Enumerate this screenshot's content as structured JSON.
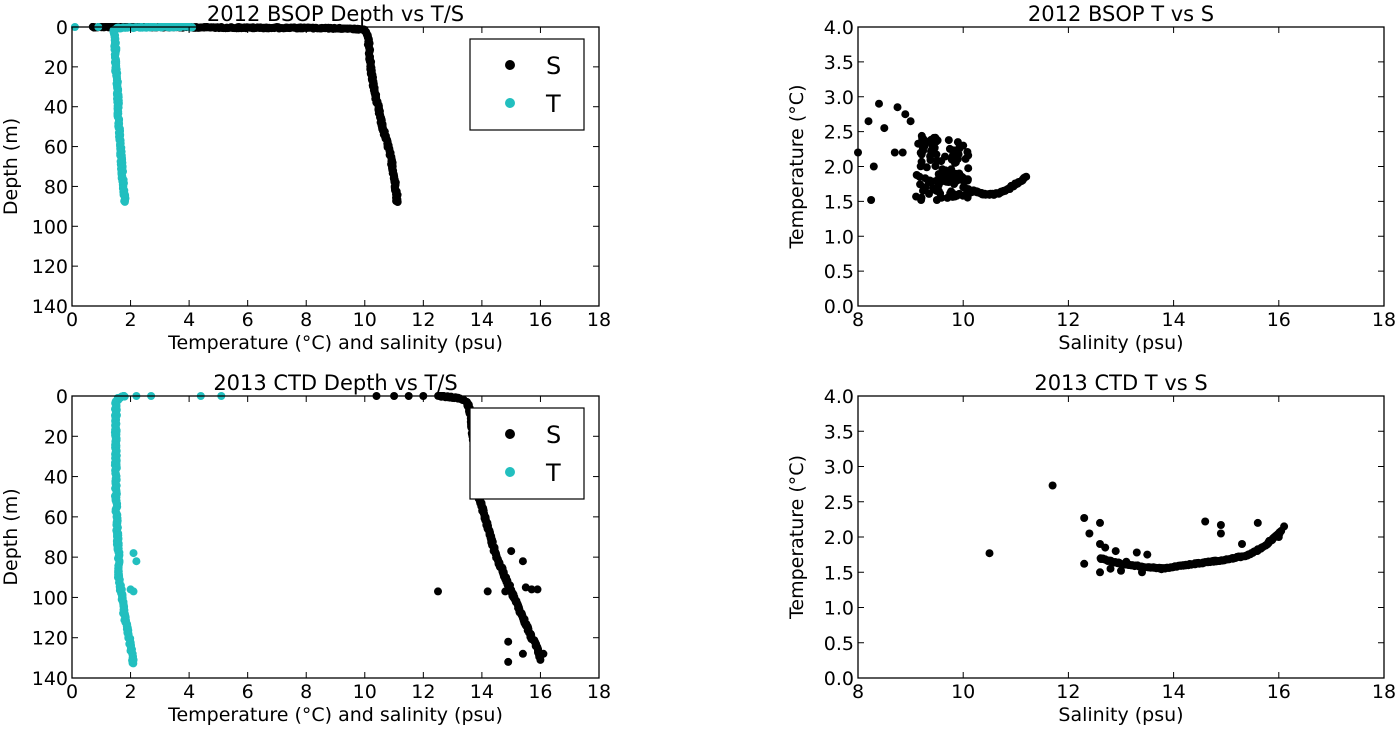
{
  "colors": {
    "salinity": "#000000",
    "temperature": "#22bfbf",
    "axes": "#000000"
  },
  "chart_data": [
    {
      "id": "depth2012",
      "type": "scatter",
      "title": "2012 BSOP Depth vs T/S",
      "xlabel": "Temperature (°C) and salinity (psu)",
      "ylabel": "Depth (m)",
      "xlim": [
        0,
        18
      ],
      "ylim": [
        140,
        0
      ],
      "y_inverted": true,
      "xticks": [
        "0",
        "2",
        "4",
        "6",
        "8",
        "10",
        "12",
        "14",
        "16",
        "18"
      ],
      "yticks": [
        "0",
        "20",
        "40",
        "60",
        "80",
        "100",
        "120",
        "140"
      ],
      "legend": {
        "position": "top-right",
        "entries": [
          "S",
          "T"
        ]
      },
      "series": [
        {
          "name": "S",
          "profile": [
            [
              0.7,
              0
            ],
            [
              3,
              0
            ],
            [
              6,
              0.4
            ],
            [
              8,
              0.5
            ],
            [
              9.5,
              0.8
            ],
            [
              10,
              1.5
            ],
            [
              10.1,
              5
            ],
            [
              10.15,
              10
            ],
            [
              10.2,
              20
            ],
            [
              10.3,
              30
            ],
            [
              10.45,
              40
            ],
            [
              10.6,
              50
            ],
            [
              10.8,
              60
            ],
            [
              10.95,
              70
            ],
            [
              11.05,
              80
            ],
            [
              11.1,
              85
            ],
            [
              11.1,
              88
            ]
          ],
          "scatter": [
            [
              1,
              0
            ],
            [
              3,
              0
            ],
            [
              5.7,
              0
            ],
            [
              7,
              0
            ],
            [
              7.4,
              0.5
            ],
            [
              9,
              0.8
            ]
          ]
        },
        {
          "name": "T",
          "profile": [
            [
              4.1,
              0
            ],
            [
              3,
              0
            ],
            [
              2,
              0.3
            ],
            [
              1.5,
              0.6
            ],
            [
              1.4,
              1.5
            ],
            [
              1.45,
              5
            ],
            [
              1.48,
              10
            ],
            [
              1.5,
              20
            ],
            [
              1.55,
              30
            ],
            [
              1.58,
              40
            ],
            [
              1.6,
              50
            ],
            [
              1.65,
              60
            ],
            [
              1.7,
              70
            ],
            [
              1.75,
              80
            ],
            [
              1.8,
              85
            ],
            [
              1.8,
              88
            ]
          ],
          "scatter": [
            [
              0.1,
              0
            ],
            [
              0.9,
              0
            ],
            [
              4,
              0
            ]
          ]
        }
      ]
    },
    {
      "id": "ts2012",
      "type": "scatter",
      "title": "2012 BSOP T vs S",
      "xlabel": "Salinity (psu)",
      "ylabel": "Temperature (°C)",
      "xlim": [
        8,
        18
      ],
      "ylim": [
        0,
        4
      ],
      "xticks": [
        "8",
        "10",
        "12",
        "14",
        "16",
        "18"
      ],
      "yticks": [
        "0.0",
        "0.5",
        "1.0",
        "1.5",
        "2.0",
        "2.5",
        "3.0",
        "3.5",
        "4.0"
      ],
      "series": [
        {
          "name": "",
          "cluster": {
            "xrange": [
              9.1,
              10.1
            ],
            "yrange": [
              1.55,
              2.6
            ],
            "count": 120
          },
          "profile": [
            [
              10.05,
              1.6
            ],
            [
              10.2,
              1.65
            ],
            [
              10.4,
              1.6
            ],
            [
              10.6,
              1.6
            ],
            [
              10.8,
              1.65
            ],
            [
              11,
              1.75
            ],
            [
              11.2,
              1.85
            ]
          ],
          "scatter": [
            [
              8.0,
              2.2
            ],
            [
              8.2,
              2.65
            ],
            [
              8.4,
              2.9
            ],
            [
              8.3,
              2.0
            ],
            [
              8.25,
              1.52
            ],
            [
              8.75,
              2.85
            ],
            [
              8.7,
              2.2
            ],
            [
              8.85,
              2.2
            ],
            [
              8.9,
              2.75
            ],
            [
              9.0,
              2.65
            ],
            [
              9.2,
              1.52
            ],
            [
              9.5,
              1.52
            ],
            [
              9.7,
              1.55
            ],
            [
              10.0,
              2.3
            ],
            [
              9.9,
              2.35
            ],
            [
              8.5,
              2.55
            ]
          ]
        }
      ]
    },
    {
      "id": "depth2013",
      "type": "scatter",
      "title": "2013 CTD Depth vs T/S",
      "xlabel": "Temperature (°C) and salinity (psu)",
      "ylabel": "Depth (m)",
      "xlim": [
        0,
        18
      ],
      "ylim": [
        140,
        0
      ],
      "y_inverted": true,
      "xticks": [
        "0",
        "2",
        "4",
        "6",
        "8",
        "10",
        "12",
        "14",
        "16",
        "18"
      ],
      "yticks": [
        "0",
        "20",
        "40",
        "60",
        "80",
        "100",
        "120",
        "140"
      ],
      "legend": {
        "position": "top-right",
        "entries": [
          "S",
          "T"
        ]
      },
      "series": [
        {
          "name": "S",
          "profile": [
            [
              12.5,
              0
            ],
            [
              13.2,
              1
            ],
            [
              13.5,
              3
            ],
            [
              13.6,
              8
            ],
            [
              13.7,
              20
            ],
            [
              13.8,
              40
            ],
            [
              13.9,
              50
            ],
            [
              14.1,
              60
            ],
            [
              14.3,
              70
            ],
            [
              14.5,
              80
            ],
            [
              14.8,
              90
            ],
            [
              15.1,
              100
            ],
            [
              15.4,
              110
            ],
            [
              15.7,
              120
            ],
            [
              15.9,
              125
            ],
            [
              16.0,
              130
            ]
          ],
          "scatter": [
            [
              10.4,
              0
            ],
            [
              11,
              0
            ],
            [
              11.5,
              0
            ],
            [
              12,
              0
            ],
            [
              12.5,
              97
            ],
            [
              14.2,
              97
            ],
            [
              14.8,
              97
            ],
            [
              15,
              77
            ],
            [
              15.4,
              82
            ],
            [
              15.7,
              96
            ],
            [
              15.9,
              96
            ],
            [
              16.1,
              128
            ],
            [
              15.4,
              128
            ],
            [
              14.9,
              122
            ],
            [
              14.9,
              132
            ],
            [
              16,
              131
            ],
            [
              15.5,
              95
            ]
          ]
        },
        {
          "name": "T",
          "profile": [
            [
              1.8,
              0
            ],
            [
              1.6,
              1
            ],
            [
              1.5,
              3
            ],
            [
              1.5,
              10
            ],
            [
              1.5,
              30
            ],
            [
              1.5,
              50
            ],
            [
              1.55,
              70
            ],
            [
              1.6,
              80
            ],
            [
              1.6,
              90
            ],
            [
              1.7,
              100
            ],
            [
              1.8,
              110
            ],
            [
              1.95,
              120
            ],
            [
              2.05,
              128
            ],
            [
              2.1,
              133
            ]
          ],
          "scatter": [
            [
              2.2,
              0
            ],
            [
              2.7,
              0
            ],
            [
              4.4,
              0
            ],
            [
              5.1,
              0
            ],
            [
              2.1,
              78
            ],
            [
              2.2,
              82
            ],
            [
              1.7,
              96
            ],
            [
              2.0,
              96
            ],
            [
              2.1,
              97
            ]
          ]
        }
      ]
    },
    {
      "id": "ts2013",
      "type": "scatter",
      "title": "2013 CTD T vs S",
      "xlabel": "Salinity (psu)",
      "ylabel": "Temperature (°C)",
      "xlim": [
        8,
        18
      ],
      "ylim": [
        0,
        4
      ],
      "xticks": [
        "8",
        "10",
        "12",
        "14",
        "16",
        "18"
      ],
      "yticks": [
        "0.0",
        "0.5",
        "1.0",
        "1.5",
        "2.0",
        "2.5",
        "3.0",
        "3.5",
        "4.0"
      ],
      "series": [
        {
          "name": "",
          "profile": [
            [
              12.6,
              1.7
            ],
            [
              13.0,
              1.62
            ],
            [
              13.4,
              1.58
            ],
            [
              13.8,
              1.55
            ],
            [
              14.2,
              1.6
            ],
            [
              14.6,
              1.64
            ],
            [
              15.0,
              1.68
            ],
            [
              15.4,
              1.74
            ],
            [
              15.7,
              1.85
            ],
            [
              15.9,
              1.98
            ],
            [
              16.05,
              2.08
            ]
          ],
          "scatter": [
            [
              10.5,
              1.77
            ],
            [
              11.7,
              2.73
            ],
            [
              12.3,
              2.27
            ],
            [
              12.4,
              2.05
            ],
            [
              12.6,
              2.2
            ],
            [
              12.3,
              1.62
            ],
            [
              12.6,
              1.5
            ],
            [
              12.8,
              1.55
            ],
            [
              12.6,
              1.9
            ],
            [
              12.7,
              1.85
            ],
            [
              12.9,
              1.8
            ],
            [
              13.0,
              1.52
            ],
            [
              13.3,
              1.78
            ],
            [
              13.5,
              1.75
            ],
            [
              14.6,
              2.22
            ],
            [
              14.9,
              2.17
            ],
            [
              14.9,
              2.05
            ],
            [
              15.6,
              2.2
            ],
            [
              15.3,
              1.9
            ],
            [
              16.1,
              2.15
            ],
            [
              16.0,
              2.0
            ],
            [
              13.1,
              1.65
            ],
            [
              13.4,
              1.5
            ]
          ]
        }
      ]
    }
  ]
}
